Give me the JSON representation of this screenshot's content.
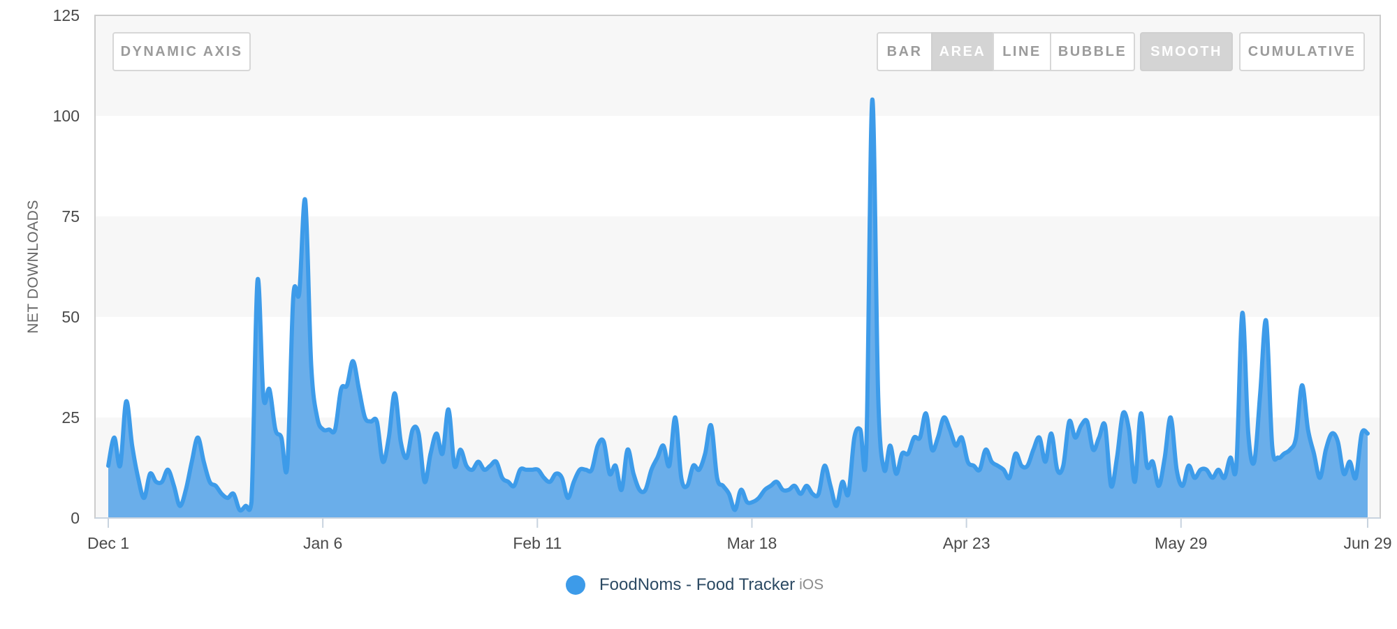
{
  "controls": {
    "dynamic_axis": "DYNAMIC AXIS",
    "chart_types": [
      "BAR",
      "AREA",
      "LINE",
      "BUBBLE"
    ],
    "active_chart_type": "AREA",
    "smooth": "SMOOTH",
    "smooth_active": true,
    "cumulative": "CUMULATIVE"
  },
  "legend": {
    "name": "FoodNoms - Food Tracker",
    "platform": "iOS",
    "color": "#3d9be9"
  },
  "chart_data": {
    "type": "area",
    "smooth": true,
    "ylabel": "NET DOWNLOADS",
    "ylim": [
      0,
      125
    ],
    "yticks": [
      0,
      25,
      50,
      75,
      100,
      125
    ],
    "x_range": [
      "Dec 1",
      "Jun 29"
    ],
    "xticks": [
      "Dec 1",
      "Jan 6",
      "Feb 11",
      "Mar 18",
      "Apr 23",
      "May 29",
      "Jun 29"
    ],
    "grid": "alternating horizontal bands",
    "colors": {
      "line": "#3d9be9",
      "fill": "#6aaeea",
      "band": "#f7f7f7",
      "frame": "#cccccc"
    },
    "series": [
      {
        "name": "FoodNoms - Food Tracker",
        "values": [
          13,
          20,
          13,
          29,
          18,
          10,
          5,
          11,
          9,
          9,
          12,
          8,
          3,
          7,
          14,
          20,
          14,
          9,
          8,
          6,
          5,
          6,
          2,
          3,
          4,
          59,
          30,
          32,
          22,
          20,
          13,
          55,
          56,
          79,
          38,
          25,
          22,
          22,
          22,
          32,
          33,
          39,
          32,
          25,
          24,
          24,
          14,
          20,
          31,
          19,
          15,
          22,
          21,
          9,
          16,
          21,
          16,
          27,
          13,
          17,
          13,
          12,
          14,
          12,
          13,
          14,
          10,
          9,
          8,
          12,
          12,
          12,
          12,
          10,
          9,
          11,
          10,
          5,
          9,
          12,
          12,
          12,
          18,
          19,
          11,
          13,
          7,
          17,
          11,
          7,
          7,
          12,
          15,
          18,
          13,
          25,
          10,
          8,
          13,
          12,
          16,
          23,
          10,
          8,
          6,
          2,
          7,
          4,
          4,
          5,
          7,
          8,
          9,
          7,
          7,
          8,
          6,
          8,
          6,
          6,
          13,
          8,
          3,
          9,
          6,
          20,
          22,
          17,
          104,
          30,
          12,
          18,
          11,
          16,
          16,
          20,
          20,
          26,
          17,
          20,
          25,
          22,
          18,
          20,
          14,
          13,
          12,
          17,
          14,
          13,
          12,
          10,
          16,
          13,
          13,
          17,
          20,
          14,
          21,
          12,
          13,
          24,
          20,
          23,
          24,
          17,
          20,
          23,
          8,
          15,
          26,
          22,
          9,
          26,
          13,
          14,
          8,
          15,
          25,
          12,
          8,
          13,
          10,
          12,
          12,
          10,
          12,
          10,
          15,
          13,
          51,
          21,
          14,
          31,
          49,
          18,
          15,
          16,
          17,
          20,
          33,
          22,
          16,
          10,
          17,
          21,
          19,
          11,
          14,
          10,
          21,
          21
        ]
      }
    ]
  }
}
